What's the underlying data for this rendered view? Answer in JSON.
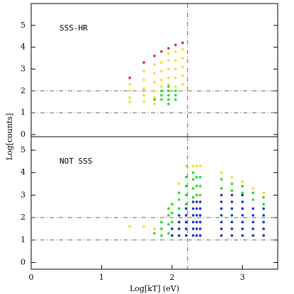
{
  "chart_data": [
    {
      "type": "scatter",
      "annotation": "SSS-HR",
      "xlim": [
        0,
        3.5
      ],
      "ylim": [
        -0.1,
        6
      ],
      "yticks": [
        0,
        1,
        2,
        3,
        4,
        5
      ],
      "hlines": [
        1,
        2
      ],
      "vline": 2.22,
      "series": [
        {
          "color": "#e8202a",
          "x": [
            1.4,
            1.6,
            1.75,
            1.85,
            1.95,
            2.05,
            2.15
          ],
          "values": [
            2.6,
            3.3,
            3.6,
            3.8,
            3.95,
            4.1,
            4.2
          ]
        },
        {
          "color": "#f0e020",
          "x": [
            1.4,
            1.4,
            1.4,
            1.4,
            1.6,
            1.6,
            1.6,
            1.6,
            1.6,
            1.75,
            1.75,
            1.75,
            1.75,
            1.75,
            1.75,
            1.85,
            1.85,
            1.85,
            1.85,
            1.95,
            1.95,
            1.95,
            1.95,
            1.95,
            2.05,
            2.05,
            2.05,
            2.05,
            2.05,
            2.15,
            2.15,
            2.15,
            2.15,
            2.15
          ],
          "values": [
            1.5,
            1.7,
            2.0,
            2.3,
            1.5,
            1.8,
            2.1,
            2.5,
            2.9,
            1.4,
            1.7,
            2.0,
            2.4,
            2.8,
            3.2,
            2.2,
            2.5,
            2.9,
            3.3,
            2.3,
            2.6,
            3.0,
            3.4,
            3.7,
            2.2,
            2.6,
            3.0,
            3.4,
            3.8,
            2.3,
            2.7,
            3.1,
            3.5,
            3.9
          ]
        },
        {
          "color": "#22dd22",
          "x": [
            1.75,
            1.85,
            1.85,
            1.85,
            1.95,
            1.95,
            1.95,
            1.95,
            1.95,
            2.05,
            2.05,
            2.05
          ],
          "values": [
            1.6,
            1.6,
            1.8,
            2.0,
            1.4,
            1.6,
            1.8,
            2.0,
            2.2,
            1.6,
            1.8,
            2.0
          ]
        }
      ]
    },
    {
      "type": "scatter",
      "annotation": "NOT SSS",
      "xlabel": "Log[kT] (eV)",
      "ylabel": "Log[counts]",
      "xlim": [
        0,
        3.5
      ],
      "xticks": [
        0,
        1,
        2,
        3
      ],
      "ylim": [
        -0.3,
        5.6
      ],
      "yticks": [
        0,
        1,
        2,
        3,
        4,
        5
      ],
      "hlines": [
        1,
        2
      ],
      "vline": 2.22,
      "series": [
        {
          "color": "#f0e020",
          "x": [
            1.4,
            1.6,
            1.75,
            2.1,
            2.2,
            2.3,
            2.35,
            2.4,
            2.7,
            2.85,
            3.0,
            3.15,
            3.3
          ],
          "values": [
            1.6,
            1.6,
            1.5,
            3.5,
            4.3,
            4.3,
            4.3,
            4.3,
            4.0,
            3.8,
            3.6,
            3.3,
            3.1
          ]
        },
        {
          "color": "#22dd22",
          "x": [
            1.75,
            1.85,
            1.85,
            1.85,
            1.95,
            1.95,
            1.95,
            1.95,
            2.0,
            2.0,
            2.0,
            2.1,
            2.1,
            2.1,
            2.2,
            2.2,
            2.2,
            2.2,
            2.3,
            2.3,
            2.3,
            2.3,
            2.35,
            2.35,
            2.35,
            2.4,
            2.4,
            2.4,
            2.7,
            2.7,
            2.85,
            2.85,
            3.0,
            3.0,
            3.15,
            3.15,
            3.3,
            3.3
          ],
          "values": [
            1.3,
            1.2,
            1.5,
            1.8,
            1.3,
            1.7,
            2.1,
            2.4,
            1.8,
            2.2,
            2.6,
            2.4,
            2.8,
            3.1,
            2.6,
            3.0,
            3.4,
            3.8,
            2.9,
            3.3,
            3.7,
            4.0,
            3.0,
            3.4,
            3.8,
            3.0,
            3.4,
            3.8,
            3.3,
            3.7,
            3.2,
            3.5,
            3.1,
            3.4,
            2.8,
            3.1,
            2.6,
            2.9
          ]
        },
        {
          "color": "#1a2ec8",
          "x": [
            2.0,
            2.0,
            2.1,
            2.1,
            2.1,
            2.1,
            2.2,
            2.2,
            2.2,
            2.2,
            2.2,
            2.3,
            2.3,
            2.3,
            2.3,
            2.3,
            2.3,
            2.35,
            2.35,
            2.35,
            2.35,
            2.35,
            2.35,
            2.4,
            2.4,
            2.4,
            2.4,
            2.4,
            2.4,
            2.7,
            2.7,
            2.7,
            2.7,
            2.7,
            2.7,
            2.7,
            2.85,
            2.85,
            2.85,
            2.85,
            2.85,
            2.85,
            2.85,
            3.0,
            3.0,
            3.0,
            3.0,
            3.0,
            3.0,
            3.0,
            3.15,
            3.15,
            3.15,
            3.15,
            3.15,
            3.3,
            3.3,
            3.3,
            3.3,
            3.3
          ],
          "values": [
            1.2,
            1.5,
            1.2,
            1.5,
            1.8,
            2.1,
            1.2,
            1.5,
            1.8,
            2.1,
            2.4,
            1.2,
            1.5,
            1.8,
            2.1,
            2.4,
            2.7,
            1.2,
            1.5,
            1.8,
            2.1,
            2.4,
            2.7,
            1.2,
            1.5,
            1.8,
            2.1,
            2.4,
            2.7,
            1.2,
            1.5,
            1.8,
            2.1,
            2.4,
            2.7,
            3.0,
            1.2,
            1.5,
            1.8,
            2.1,
            2.4,
            2.7,
            3.0,
            1.2,
            1.5,
            1.8,
            2.1,
            2.4,
            2.7,
            3.0,
            1.2,
            1.5,
            1.8,
            2.1,
            2.4,
            1.2,
            1.5,
            1.8,
            2.1,
            2.4
          ]
        }
      ]
    }
  ]
}
